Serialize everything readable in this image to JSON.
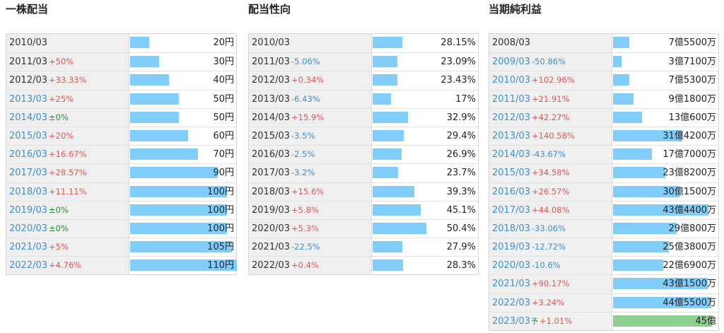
{
  "colors": {
    "bar": "#80ccfb",
    "forecast_bar": "#8fcf8f",
    "increase": "#e05555",
    "decrease": "#3d8fd6",
    "flat": "#2f8a3a"
  },
  "panels": [
    {
      "id": "dividend-per-share",
      "title": "一株配当",
      "max": 110,
      "rows": [
        {
          "year": "2010/03",
          "change": "",
          "dir": "",
          "value": "20円",
          "num": 20,
          "tinted": false
        },
        {
          "year": "2011/03",
          "change": "+50%",
          "dir": "up",
          "value": "30円",
          "num": 30,
          "tinted": false
        },
        {
          "year": "2012/03",
          "change": "+33.33%",
          "dir": "up",
          "value": "40円",
          "num": 40,
          "tinted": false
        },
        {
          "year": "2013/03",
          "change": "+25%",
          "dir": "up",
          "value": "50円",
          "num": 50,
          "tinted": true
        },
        {
          "year": "2014/03",
          "change": "±0%",
          "dir": "flat",
          "value": "50円",
          "num": 50,
          "tinted": true
        },
        {
          "year": "2015/03",
          "change": "+20%",
          "dir": "up",
          "value": "60円",
          "num": 60,
          "tinted": true
        },
        {
          "year": "2016/03",
          "change": "+16.67%",
          "dir": "up",
          "value": "70円",
          "num": 70,
          "tinted": true
        },
        {
          "year": "2017/03",
          "change": "+28.57%",
          "dir": "up",
          "value": "90円",
          "num": 90,
          "tinted": true
        },
        {
          "year": "2018/03",
          "change": "+11.11%",
          "dir": "up",
          "value": "100円",
          "num": 100,
          "tinted": true
        },
        {
          "year": "2019/03",
          "change": "±0%",
          "dir": "flat",
          "value": "100円",
          "num": 100,
          "tinted": true
        },
        {
          "year": "2020/03",
          "change": "±0%",
          "dir": "flat",
          "value": "100円",
          "num": 100,
          "tinted": true
        },
        {
          "year": "2021/03",
          "change": "+5%",
          "dir": "up",
          "value": "105円",
          "num": 105,
          "tinted": true
        },
        {
          "year": "2022/03",
          "change": "+4.76%",
          "dir": "up",
          "value": "110円",
          "num": 110,
          "tinted": true
        }
      ]
    },
    {
      "id": "payout-ratio",
      "title": "配当性向",
      "max": 50.4,
      "rows": [
        {
          "year": "2010/03",
          "change": "",
          "dir": "",
          "value": "28.15%",
          "num": 28.15,
          "tinted": false
        },
        {
          "year": "2011/03",
          "change": "-5.06%",
          "dir": "down",
          "value": "23.09%",
          "num": 23.09,
          "tinted": false
        },
        {
          "year": "2012/03",
          "change": "+0.34%",
          "dir": "up",
          "value": "23.43%",
          "num": 23.43,
          "tinted": false
        },
        {
          "year": "2013/03",
          "change": "-6.43%",
          "dir": "down",
          "value": "17%",
          "num": 17,
          "tinted": false
        },
        {
          "year": "2014/03",
          "change": "+15.9%",
          "dir": "up",
          "value": "32.9%",
          "num": 32.9,
          "tinted": false
        },
        {
          "year": "2015/03",
          "change": "-3.5%",
          "dir": "down",
          "value": "29.4%",
          "num": 29.4,
          "tinted": false
        },
        {
          "year": "2016/03",
          "change": "-2.5%",
          "dir": "down",
          "value": "26.9%",
          "num": 26.9,
          "tinted": false
        },
        {
          "year": "2017/03",
          "change": "-3.2%",
          "dir": "down",
          "value": "23.7%",
          "num": 23.7,
          "tinted": false
        },
        {
          "year": "2018/03",
          "change": "+15.6%",
          "dir": "up",
          "value": "39.3%",
          "num": 39.3,
          "tinted": false
        },
        {
          "year": "2019/03",
          "change": "+5.8%",
          "dir": "up",
          "value": "45.1%",
          "num": 45.1,
          "tinted": false
        },
        {
          "year": "2020/03",
          "change": "+5.3%",
          "dir": "up",
          "value": "50.4%",
          "num": 50.4,
          "tinted": false
        },
        {
          "year": "2021/03",
          "change": "-22.5%",
          "dir": "down",
          "value": "27.9%",
          "num": 27.9,
          "tinted": false
        },
        {
          "year": "2022/03",
          "change": "+0.4%",
          "dir": "up",
          "value": "28.3%",
          "num": 28.3,
          "tinted": false
        }
      ]
    },
    {
      "id": "net-income",
      "title": "当期純利益",
      "max": 45,
      "rows": [
        {
          "year": "2008/03",
          "change": "",
          "dir": "",
          "value": "7億5500万",
          "num": 7.55,
          "tinted": false
        },
        {
          "year": "2009/03",
          "change": "-50.86%",
          "dir": "down",
          "value": "3億7100万",
          "num": 3.71,
          "tinted": true
        },
        {
          "year": "2010/03",
          "change": "+102.96%",
          "dir": "up",
          "value": "7億5300万",
          "num": 7.53,
          "tinted": true
        },
        {
          "year": "2011/03",
          "change": "+21.91%",
          "dir": "up",
          "value": "9億1800万",
          "num": 9.18,
          "tinted": true
        },
        {
          "year": "2012/03",
          "change": "+42.27%",
          "dir": "up",
          "value": "13億600万",
          "num": 13.06,
          "tinted": true
        },
        {
          "year": "2013/03",
          "change": "+140.58%",
          "dir": "up",
          "value": "31億4200万",
          "num": 31.42,
          "tinted": true
        },
        {
          "year": "2014/03",
          "change": "-43.67%",
          "dir": "down",
          "value": "17億7000万",
          "num": 17.7,
          "tinted": true
        },
        {
          "year": "2015/03",
          "change": "+34.58%",
          "dir": "up",
          "value": "23億8200万",
          "num": 23.82,
          "tinted": true
        },
        {
          "year": "2016/03",
          "change": "+26.57%",
          "dir": "up",
          "value": "30億1500万",
          "num": 30.15,
          "tinted": true
        },
        {
          "year": "2017/03",
          "change": "+44.08%",
          "dir": "up",
          "value": "43億4400万",
          "num": 43.44,
          "tinted": true
        },
        {
          "year": "2018/03",
          "change": "-33.06%",
          "dir": "down",
          "value": "29億800万",
          "num": 29.08,
          "tinted": true
        },
        {
          "year": "2019/03",
          "change": "-12.72%",
          "dir": "down",
          "value": "25億3800万",
          "num": 25.38,
          "tinted": true
        },
        {
          "year": "2020/03",
          "change": "-10.6%",
          "dir": "down",
          "value": "22億6900万",
          "num": 22.69,
          "tinted": true
        },
        {
          "year": "2021/03",
          "change": "+90.17%",
          "dir": "up",
          "value": "43億1500万",
          "num": 43.15,
          "tinted": true
        },
        {
          "year": "2022/03",
          "change": "+3.24%",
          "dir": "up",
          "value": "44億5500万",
          "num": 44.55,
          "tinted": true
        },
        {
          "year": "2023/03",
          "forecast": "予",
          "change": "+1.01%",
          "dir": "up",
          "value": "45億",
          "num": 45,
          "tinted": true
        }
      ]
    }
  ]
}
